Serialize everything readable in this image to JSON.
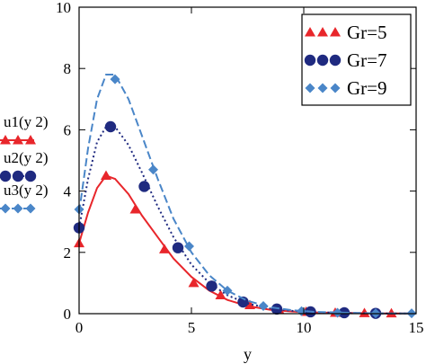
{
  "chart_data": {
    "type": "line",
    "xlabel": "y",
    "xlim": [
      0,
      15
    ],
    "ylim": [
      0,
      10
    ],
    "xticks": [
      "0",
      "5",
      "10",
      "15"
    ],
    "yticks": [
      "0",
      "2",
      "4",
      "6",
      "8",
      "10"
    ],
    "grid": false,
    "legend_position": "top-right",
    "series": [
      {
        "name": "Gr=5",
        "axis_label": "u1(y  2)",
        "color": "#e8262b",
        "line_style": "solid",
        "marker": "triangle",
        "curve": [
          {
            "x": 0,
            "y": 2.3
          },
          {
            "x": 0.4,
            "y": 3.3
          },
          {
            "x": 0.8,
            "y": 4.1
          },
          {
            "x": 1.2,
            "y": 4.5
          },
          {
            "x": 1.6,
            "y": 4.4
          },
          {
            "x": 2.2,
            "y": 3.9
          },
          {
            "x": 2.8,
            "y": 3.2
          },
          {
            "x": 3.5,
            "y": 2.5
          },
          {
            "x": 4.2,
            "y": 1.8
          },
          {
            "x": 5.0,
            "y": 1.2
          },
          {
            "x": 5.8,
            "y": 0.75
          },
          {
            "x": 6.6,
            "y": 0.45
          },
          {
            "x": 7.5,
            "y": 0.25
          },
          {
            "x": 8.5,
            "y": 0.13
          },
          {
            "x": 9.5,
            "y": 0.07
          },
          {
            "x": 10.5,
            "y": 0.04
          },
          {
            "x": 12,
            "y": 0.02
          },
          {
            "x": 13.5,
            "y": 0.01
          },
          {
            "x": 15,
            "y": 0.01
          }
        ],
        "markers": [
          {
            "x": 0,
            "y": 2.3
          },
          {
            "x": 1.2,
            "y": 4.5
          },
          {
            "x": 2.5,
            "y": 3.4
          },
          {
            "x": 3.8,
            "y": 2.1
          },
          {
            "x": 5.1,
            "y": 1.0
          },
          {
            "x": 6.3,
            "y": 0.6
          },
          {
            "x": 7.6,
            "y": 0.28
          },
          {
            "x": 8.9,
            "y": 0.13
          },
          {
            "x": 10.1,
            "y": 0.06
          },
          {
            "x": 11.4,
            "y": 0.03
          },
          {
            "x": 12.7,
            "y": 0.02
          },
          {
            "x": 13.9,
            "y": 0.01
          }
        ]
      },
      {
        "name": "Gr=7",
        "axis_label": "u2(y  2)",
        "color": "#1f2a80",
        "line_style": "dotted",
        "marker": "circle",
        "curve": [
          {
            "x": 0,
            "y": 2.8
          },
          {
            "x": 0.4,
            "y": 4.4
          },
          {
            "x": 0.8,
            "y": 5.6
          },
          {
            "x": 1.2,
            "y": 6.1
          },
          {
            "x": 1.6,
            "y": 6.1
          },
          {
            "x": 2.2,
            "y": 5.5
          },
          {
            "x": 2.8,
            "y": 4.6
          },
          {
            "x": 3.5,
            "y": 3.5
          },
          {
            "x": 4.2,
            "y": 2.5
          },
          {
            "x": 5.0,
            "y": 1.6
          },
          {
            "x": 5.8,
            "y": 1.0
          },
          {
            "x": 6.6,
            "y": 0.6
          },
          {
            "x": 7.5,
            "y": 0.33
          },
          {
            "x": 8.5,
            "y": 0.17
          },
          {
            "x": 9.5,
            "y": 0.09
          },
          {
            "x": 10.5,
            "y": 0.05
          },
          {
            "x": 12,
            "y": 0.02
          },
          {
            "x": 13.5,
            "y": 0.01
          },
          {
            "x": 15,
            "y": 0.01
          }
        ],
        "markers": [
          {
            "x": 0,
            "y": 2.8
          },
          {
            "x": 1.4,
            "y": 6.1
          },
          {
            "x": 2.9,
            "y": 4.15
          },
          {
            "x": 4.4,
            "y": 2.15
          },
          {
            "x": 5.9,
            "y": 0.9
          },
          {
            "x": 7.3,
            "y": 0.38
          },
          {
            "x": 8.8,
            "y": 0.15
          },
          {
            "x": 10.3,
            "y": 0.06
          },
          {
            "x": 11.8,
            "y": 0.03
          },
          {
            "x": 13.2,
            "y": 0.01
          }
        ]
      },
      {
        "name": "Gr=9",
        "axis_label": "u3(y  2)",
        "color": "#4a86c8",
        "line_style": "dashed",
        "marker": "diamond",
        "curve": [
          {
            "x": 0,
            "y": 3.3
          },
          {
            "x": 0.4,
            "y": 5.4
          },
          {
            "x": 0.8,
            "y": 7.0
          },
          {
            "x": 1.2,
            "y": 7.8
          },
          {
            "x": 1.6,
            "y": 7.8
          },
          {
            "x": 2.2,
            "y": 7.0
          },
          {
            "x": 2.8,
            "y": 5.8
          },
          {
            "x": 3.5,
            "y": 4.4
          },
          {
            "x": 4.2,
            "y": 3.1
          },
          {
            "x": 5.0,
            "y": 2.0
          },
          {
            "x": 5.8,
            "y": 1.25
          },
          {
            "x": 6.6,
            "y": 0.75
          },
          {
            "x": 7.5,
            "y": 0.42
          },
          {
            "x": 8.5,
            "y": 0.21
          },
          {
            "x": 9.5,
            "y": 0.11
          },
          {
            "x": 10.5,
            "y": 0.06
          },
          {
            "x": 12,
            "y": 0.03
          },
          {
            "x": 13.5,
            "y": 0.01
          },
          {
            "x": 15,
            "y": 0.01
          }
        ],
        "markers": [
          {
            "x": 0,
            "y": 3.4
          },
          {
            "x": 1.6,
            "y": 7.65
          },
          {
            "x": 3.3,
            "y": 4.7
          },
          {
            "x": 4.9,
            "y": 2.2
          },
          {
            "x": 6.6,
            "y": 0.75
          },
          {
            "x": 8.2,
            "y": 0.25
          },
          {
            "x": 9.9,
            "y": 0.08
          },
          {
            "x": 11.5,
            "y": 0.03
          },
          {
            "x": 13.2,
            "y": 0.01
          },
          {
            "x": 14.8,
            "y": 0.01
          }
        ]
      }
    ]
  }
}
